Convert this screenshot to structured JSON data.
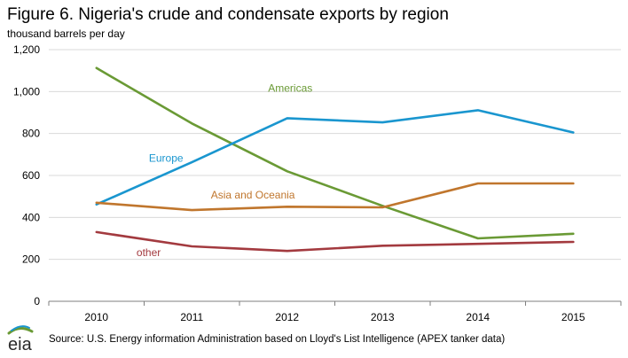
{
  "chart_data": {
    "type": "line",
    "title": "Figure 6. Nigeria's crude and condensate exports by region",
    "ylabel": "thousand barrels per day",
    "xlabel": "",
    "categories": [
      "2010",
      "2011",
      "2012",
      "2013",
      "2014",
      "2015"
    ],
    "ylim": [
      0,
      1200
    ],
    "yticks": [
      0,
      200,
      400,
      600,
      800,
      1000,
      1200
    ],
    "ytick_labels": [
      "0",
      "200",
      "400",
      "600",
      "800",
      "1,000",
      "1,200"
    ],
    "grid": true,
    "legend": "inline labels",
    "series": [
      {
        "name": "Americas",
        "color": "#6a9a35",
        "values": [
          1112,
          848,
          620,
          455,
          300,
          322
        ]
      },
      {
        "name": "Europe",
        "color": "#1a96cf",
        "values": [
          462,
          663,
          873,
          853,
          911,
          805
        ]
      },
      {
        "name": "Asia and Oceania",
        "color": "#c0762d",
        "values": [
          470,
          435,
          451,
          448,
          562,
          562
        ]
      },
      {
        "name": "other",
        "color": "#a33a3f",
        "values": [
          330,
          262,
          240,
          265,
          274,
          283
        ]
      }
    ]
  },
  "source": "Source: U.S. Energy information Administration based on Lloyd's List Intelligence (APEX tanker data)",
  "logo_text": "eia"
}
